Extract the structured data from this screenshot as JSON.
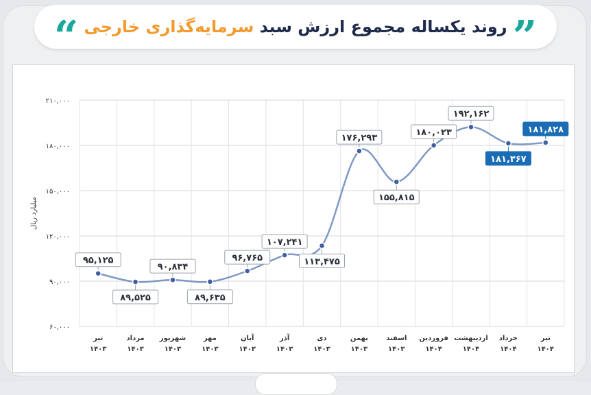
{
  "header": {
    "title_main": "روند یکساله مجموع ارزش سبد",
    "title_highlight": "سرمایه‌گذاری خارجی",
    "quote_icon": "quote-icon"
  },
  "colors": {
    "accent": "#1aa89b",
    "highlight": "#f29a2e",
    "line": "#7f98c4",
    "point": "#3f5fa0",
    "label_box_last": "#1a6db5"
  },
  "chart_data": {
    "type": "line",
    "ylabel": "میلیارد ریال",
    "ylim": [
      60000,
      210000
    ],
    "yticks": [
      {
        "value": 60000,
        "label": "۶۰,۰۰۰"
      },
      {
        "value": 90000,
        "label": "۹۰,۰۰۰"
      },
      {
        "value": 120000,
        "label": "۱۲۰,۰۰۰"
      },
      {
        "value": 150000,
        "label": "۱۵۰,۰۰۰"
      },
      {
        "value": 180000,
        "label": "۱۸۰,۰۰۰"
      },
      {
        "value": 210000,
        "label": "۲۱۰,۰۰۰"
      }
    ],
    "grid": true,
    "categories": [
      {
        "month": "تیر",
        "year": "۱۴۰۳"
      },
      {
        "month": "مرداد",
        "year": "۱۴۰۳"
      },
      {
        "month": "شهریور",
        "year": "۱۴۰۳"
      },
      {
        "month": "مهر",
        "year": "۱۴۰۳"
      },
      {
        "month": "آبان",
        "year": "۱۴۰۳"
      },
      {
        "month": "آذر",
        "year": "۱۴۰۳"
      },
      {
        "month": "دی",
        "year": "۱۴۰۳"
      },
      {
        "month": "بهمن",
        "year": "۱۴۰۳"
      },
      {
        "month": "اسفند",
        "year": "۱۴۰۳"
      },
      {
        "month": "فروردین",
        "year": "۱۴۰۴"
      },
      {
        "month": "اردیبهشت",
        "year": "۱۴۰۴"
      },
      {
        "month": "خرداد",
        "year": "۱۴۰۴"
      },
      {
        "month": "تیر",
        "year": "۱۴۰۴"
      }
    ],
    "series": [
      {
        "values": [
          95125,
          89525,
          90834,
          89635,
          96765,
          107241,
          113475,
          176293,
          155815,
          180023,
          192162,
          181367,
          181828
        ],
        "labels": [
          "۹۵,۱۲۵",
          "۸۹,۵۲۵",
          "۹۰,۸۳۴",
          "۸۹,۶۳۵",
          "۹۶,۷۶۵",
          "۱۰۷,۲۴۱",
          "۱۱۳,۴۷۵",
          "۱۷۶,۲۹۳",
          "۱۵۵,۸۱۵",
          "۱۸۰,۰۲۳",
          "۱۹۲,۱۶۲",
          "۱۸۱,۳۶۷",
          "۱۸۱,۸۲۸"
        ]
      }
    ]
  }
}
